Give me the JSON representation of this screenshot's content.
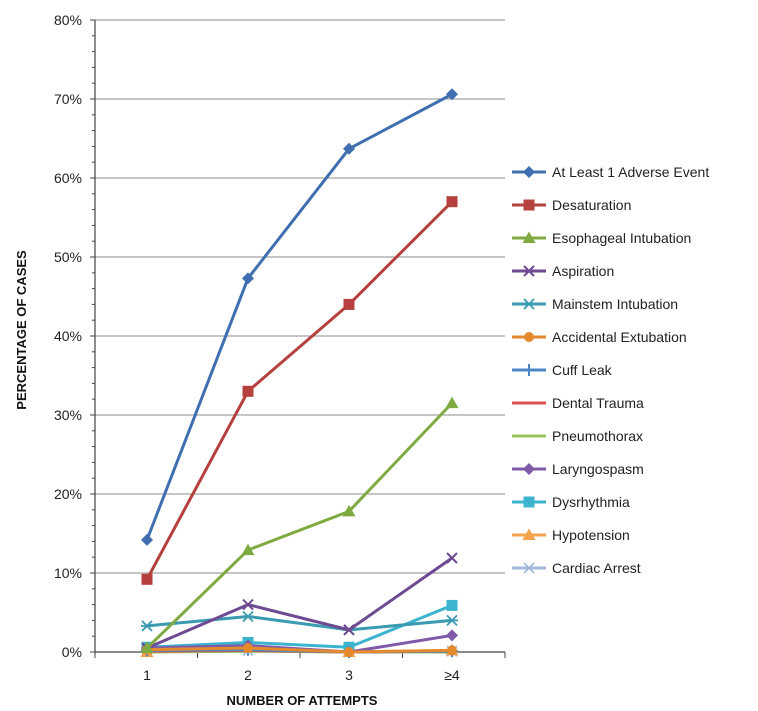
{
  "chart_data": {
    "type": "line",
    "title": "",
    "xlabel": "NUMBER OF ATTEMPTS",
    "ylabel": "PERCENTAGE OF CASES",
    "categories": [
      "1",
      "2",
      "3",
      "≥4"
    ],
    "ylim": [
      0,
      80
    ],
    "yticks": [
      "0%",
      "10%",
      "20%",
      "30%",
      "40%",
      "50%",
      "60%",
      "70%",
      "80%"
    ],
    "grid": true,
    "legend_position": "right",
    "series": [
      {
        "name": "At Least 1 Adverse Event",
        "color": "#3f6fb0",
        "marker": "diamond",
        "values": [
          14.2,
          47.3,
          63.7,
          70.6
        ]
      },
      {
        "name": "Desaturation",
        "color": "#b5403d",
        "marker": "square",
        "values": [
          9.2,
          33.0,
          44.0,
          57.0
        ]
      },
      {
        "name": "Esophageal Intubation",
        "color": "#7faa42",
        "marker": "triangle",
        "values": [
          0.5,
          12.9,
          17.8,
          31.5
        ]
      },
      {
        "name": "Aspiration",
        "color": "#6e4a92",
        "marker": "x",
        "values": [
          0.5,
          6.0,
          2.8,
          11.9
        ]
      },
      {
        "name": "Mainstem Intubation",
        "color": "#3a9bb1",
        "marker": "asterisk",
        "values": [
          3.3,
          4.5,
          2.8,
          4.0
        ]
      },
      {
        "name": "Accidental Extubation",
        "color": "#e48a2d",
        "marker": "circle",
        "values": [
          0.3,
          0.5,
          0.0,
          0.2
        ]
      },
      {
        "name": "Cuff Leak",
        "color": "#4a85c6",
        "marker": "plus",
        "values": [
          0.2,
          0.3,
          0.0,
          0.1
        ]
      },
      {
        "name": "Dental Trauma",
        "color": "#d9534f",
        "marker": "none",
        "values": [
          0.1,
          0.2,
          0.0,
          0.1
        ]
      },
      {
        "name": "Pneumothorax",
        "color": "#99c45a",
        "marker": "none",
        "values": [
          0.0,
          0.1,
          0.0,
          0.0
        ]
      },
      {
        "name": "Laryngospasm",
        "color": "#8059a8",
        "marker": "diamond",
        "values": [
          0.5,
          0.8,
          0.0,
          2.1
        ]
      },
      {
        "name": "Dysrhythmia",
        "color": "#3cb3cf",
        "marker": "square",
        "values": [
          0.6,
          1.2,
          0.6,
          5.9
        ]
      },
      {
        "name": "Hypotension",
        "color": "#f4a24b",
        "marker": "triangle",
        "values": [
          0.0,
          0.6,
          0.0,
          0.2
        ]
      },
      {
        "name": "Cardiac Arrest",
        "color": "#a3b9dd",
        "marker": "asterisk",
        "values": [
          0.0,
          0.2,
          0.0,
          0.1
        ]
      }
    ]
  }
}
